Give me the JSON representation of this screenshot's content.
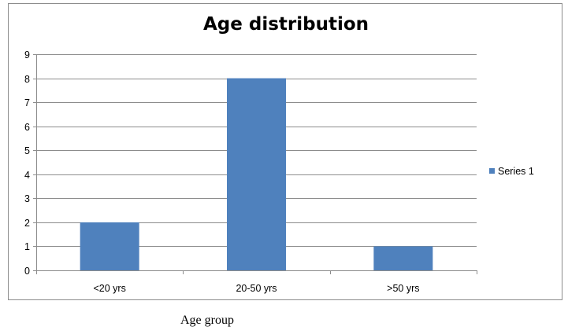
{
  "chart_data": {
    "type": "bar",
    "title": "Age distribution",
    "xlabel": "Age group",
    "ylabel": "",
    "categories": [
      "<20 yrs",
      "20-50 yrs",
      ">50 yrs"
    ],
    "series": [
      {
        "name": "Series 1",
        "values": [
          2,
          8,
          1
        ],
        "color": "#4f81bd"
      }
    ],
    "ylim": [
      0,
      9
    ],
    "yticks": [
      0,
      1,
      2,
      3,
      4,
      5,
      6,
      7,
      8,
      9
    ],
    "grid": true,
    "legend_position": "right"
  }
}
